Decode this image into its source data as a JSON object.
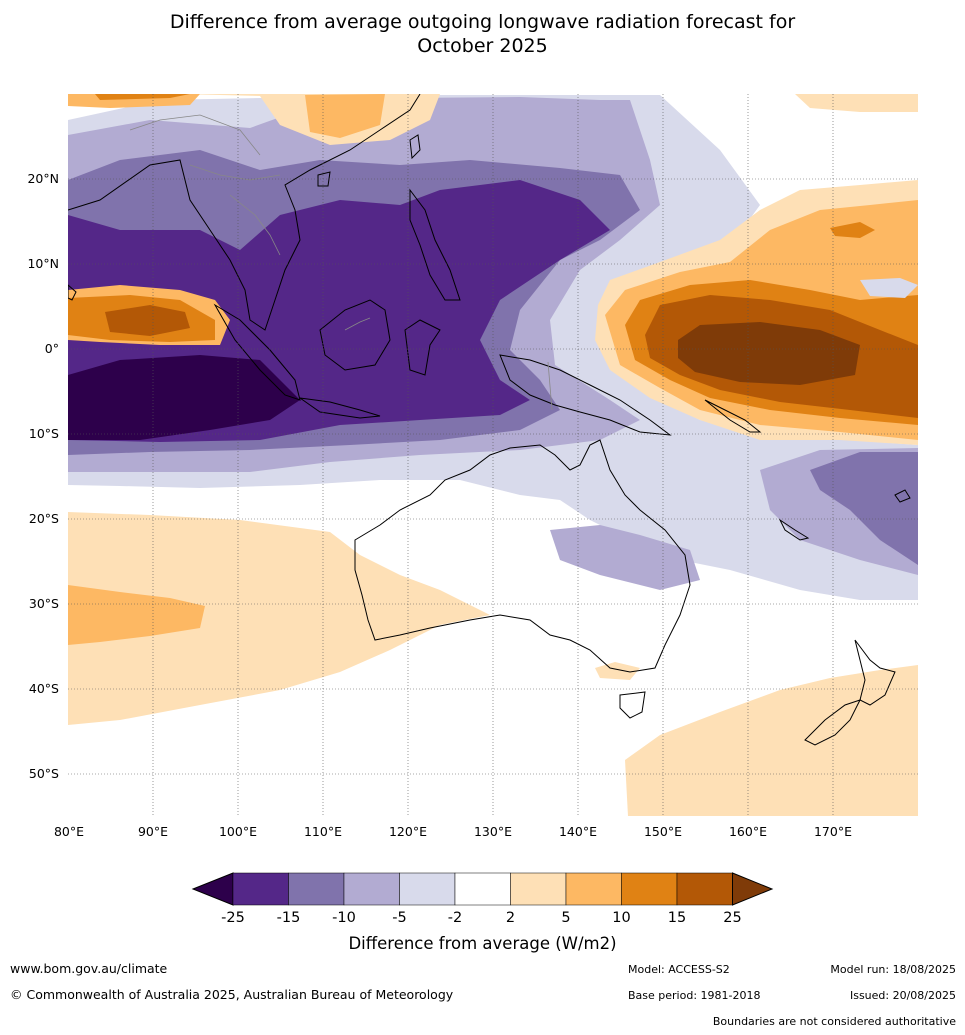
{
  "title": {
    "line1": "Difference from average outgoing longwave radiation forecast for",
    "line2": "October 2025"
  },
  "lon_labels": [
    "80°E",
    "90°E",
    "100°E",
    "110°E",
    "120°E",
    "130°E",
    "140°E",
    "150°E",
    "160°E",
    "170°E"
  ],
  "lat_labels": [
    "20°N",
    "10°N",
    "0°",
    "10°S",
    "20°S",
    "30°S",
    "40°S",
    "50°S"
  ],
  "map_extent": {
    "lon": [
      80,
      180
    ],
    "lat": [
      -55,
      30
    ]
  },
  "colorbar": {
    "ticks": [
      "-25",
      "-15",
      "-10",
      "-5",
      "-2",
      "2",
      "5",
      "10",
      "15",
      "25"
    ],
    "colors": [
      "#2d004b",
      "#542788",
      "#8073ac",
      "#b2abd2",
      "#d8daeb",
      "#ffffff",
      "#fee0b6",
      "#fdb863",
      "#e08214",
      "#b35806",
      "#7f3b08"
    ],
    "title": "Difference from average (W/m2)"
  },
  "footer": {
    "website": "www.bom.gov.au/climate",
    "copyright": "© Commonwealth of Australia 2025, Australian Bureau of Meteorology",
    "model": "Model: ACCESS-S2",
    "base_period": "Base period: 1981-2018",
    "model_run": "Model run: 18/08/2025",
    "issued": "Issued: 20/08/2025",
    "disclaimer": "Boundaries are not considered authoritative"
  }
}
